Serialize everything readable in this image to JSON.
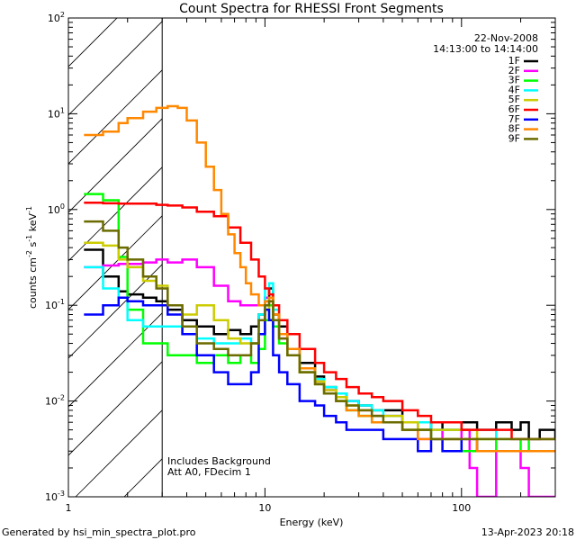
{
  "chart_data": {
    "type": "line",
    "title": "Count Spectra for RHESSI Front Segments",
    "xlabel": "Energy (keV)",
    "ylabel_parts": {
      "a": "counts cm",
      "a_exp": "-2",
      "b": " s",
      "b_exp": "-1",
      "c": " keV",
      "c_exp": "-1"
    },
    "xscale": "log",
    "yscale": "log",
    "xlim": [
      1,
      300
    ],
    "ylim": [
      0.001,
      100
    ],
    "x_ticks": [
      {
        "value": 1,
        "label": "1"
      },
      {
        "value": 10,
        "label": "10"
      },
      {
        "value": 100,
        "label": "100"
      }
    ],
    "y_ticks": [
      {
        "value": 0.001,
        "base": "10",
        "exp": "-3"
      },
      {
        "value": 0.01,
        "base": "10",
        "exp": "-2"
      },
      {
        "value": 0.1,
        "base": "10",
        "exp": "-1"
      },
      {
        "value": 1,
        "base": "10",
        "exp": "0"
      },
      {
        "value": 10,
        "base": "10",
        "exp": "1"
      },
      {
        "value": 100,
        "base": "10",
        "exp": "2"
      }
    ],
    "hatched_region": {
      "x_start": 1,
      "x_end": 3
    },
    "header_right": [
      "22-Nov-2008",
      "14:13:00 to 14:14:00"
    ],
    "annotations": [
      "Includes Background",
      "Att A0, FDecim 1"
    ],
    "series": [
      {
        "name": "1F",
        "color": "#000000",
        "x": [
          1.2,
          1.5,
          1.8,
          2.0,
          2.4,
          2.8,
          3.2,
          3.8,
          4.5,
          5.5,
          6.5,
          7.5,
          8.5,
          9.3,
          10,
          10.5,
          11,
          11.8,
          13,
          15,
          18,
          20,
          23,
          26,
          30,
          35,
          40,
          50,
          60,
          70,
          80,
          100,
          120,
          150,
          180,
          200,
          220,
          250,
          300
        ],
        "y": [
          0.38,
          0.2,
          0.14,
          0.13,
          0.12,
          0.11,
          0.09,
          0.07,
          0.06,
          0.05,
          0.055,
          0.05,
          0.06,
          0.08,
          0.12,
          0.15,
          0.08,
          0.06,
          0.035,
          0.025,
          0.018,
          0.014,
          0.012,
          0.01,
          0.009,
          0.008,
          0.008,
          0.006,
          0.005,
          0.006,
          0.005,
          0.006,
          0.005,
          0.006,
          0.005,
          0.006,
          0.004,
          0.005,
          0.004
        ]
      },
      {
        "name": "2F",
        "color": "#ff00ff",
        "x": [
          1.2,
          1.5,
          1.8,
          2.0,
          2.4,
          2.8,
          3.2,
          3.8,
          4.5,
          5.5,
          6.5,
          7.5,
          8.5,
          9.3,
          10,
          10.5,
          11,
          11.8,
          13,
          15,
          18,
          20,
          23,
          26,
          30,
          35,
          40,
          50,
          60,
          70,
          80,
          100,
          110,
          120,
          150,
          180,
          200,
          220,
          250,
          300
        ],
        "y": [
          0.25,
          0.26,
          0.27,
          0.27,
          0.28,
          0.3,
          0.28,
          0.3,
          0.25,
          0.16,
          0.11,
          0.1,
          0.1,
          0.1,
          0.12,
          0.1,
          0.06,
          0.045,
          0.03,
          0.02,
          0.016,
          0.013,
          0.011,
          0.01,
          0.008,
          0.007,
          0.007,
          0.006,
          0.004,
          0.005,
          0.004,
          0.005,
          0.002,
          0.001,
          0.003,
          0.003,
          0.002,
          0.001,
          0.001,
          0.001
        ]
      },
      {
        "name": "3F",
        "color": "#00ff00",
        "x": [
          1.2,
          1.5,
          1.8,
          2.0,
          2.4,
          2.8,
          3.2,
          3.8,
          4.5,
          5.5,
          6.5,
          7.5,
          8.5,
          9.3,
          10,
          10.5,
          11,
          11.8,
          13,
          15,
          18,
          20,
          23,
          26,
          30,
          35,
          40,
          50,
          60,
          70,
          80,
          100,
          120,
          150,
          180,
          200,
          220,
          250,
          300
        ],
        "y": [
          1.45,
          1.25,
          0.32,
          0.09,
          0.04,
          0.04,
          0.03,
          0.03,
          0.025,
          0.03,
          0.025,
          0.03,
          0.025,
          0.035,
          0.07,
          0.1,
          0.06,
          0.04,
          0.03,
          0.02,
          0.015,
          0.012,
          0.01,
          0.008,
          0.007,
          0.006,
          0.006,
          0.005,
          0.005,
          0.004,
          0.004,
          0.003,
          0.004,
          0.003,
          0.003,
          0.004,
          0.003,
          0.003,
          0.003
        ]
      },
      {
        "name": "4F",
        "color": "#00ffff",
        "x": [
          1.2,
          1.5,
          1.8,
          2.0,
          2.4,
          2.8,
          3.2,
          3.8,
          4.5,
          5.5,
          6.5,
          7.5,
          8.5,
          9.3,
          10,
          10.5,
          11,
          11.8,
          13,
          15,
          18,
          20,
          23,
          26,
          30,
          35,
          40,
          50,
          60,
          70,
          80,
          100,
          120,
          150,
          180,
          200,
          220,
          250,
          300
        ],
        "y": [
          0.25,
          0.15,
          0.12,
          0.07,
          0.06,
          0.06,
          0.06,
          0.05,
          0.045,
          0.04,
          0.04,
          0.045,
          0.04,
          0.08,
          0.15,
          0.17,
          0.09,
          0.05,
          0.035,
          0.022,
          0.017,
          0.014,
          0.012,
          0.01,
          0.009,
          0.008,
          0.007,
          0.006,
          0.006,
          0.005,
          0.005,
          0.005,
          0.005,
          0.004,
          0.004,
          0.004,
          0.004,
          0.004,
          0.004
        ]
      },
      {
        "name": "5F",
        "color": "#cccc00",
        "x": [
          1.2,
          1.5,
          1.8,
          2.0,
          2.4,
          2.8,
          3.2,
          3.8,
          4.5,
          5.5,
          6.5,
          7.5,
          8.5,
          9.3,
          10,
          10.5,
          11,
          11.8,
          13,
          15,
          18,
          20,
          23,
          26,
          30,
          35,
          40,
          50,
          60,
          70,
          80,
          100,
          120,
          150,
          180,
          200,
          220,
          250,
          300
        ],
        "y": [
          0.45,
          0.42,
          0.3,
          0.25,
          0.18,
          0.16,
          0.1,
          0.08,
          0.1,
          0.07,
          0.045,
          0.04,
          0.04,
          0.05,
          0.09,
          0.12,
          0.07,
          0.05,
          0.03,
          0.02,
          0.016,
          0.013,
          0.011,
          0.009,
          0.008,
          0.007,
          0.007,
          0.006,
          0.005,
          0.005,
          0.005,
          0.005,
          0.004,
          0.004,
          0.004,
          0.004,
          0.004,
          0.004,
          0.004
        ]
      },
      {
        "name": "6F",
        "color": "#ff0000",
        "x": [
          1.2,
          1.5,
          1.8,
          2.0,
          2.4,
          2.8,
          3.2,
          3.8,
          4.5,
          5.5,
          6.5,
          7.5,
          8.5,
          9.3,
          10,
          10.5,
          11,
          11.8,
          13,
          15,
          18,
          20,
          23,
          26,
          30,
          35,
          40,
          50,
          60,
          70,
          80,
          100,
          120,
          150,
          180,
          200,
          220,
          250,
          300
        ],
        "y": [
          1.18,
          1.16,
          1.15,
          1.15,
          1.15,
          1.12,
          1.1,
          1.05,
          0.95,
          0.85,
          0.65,
          0.45,
          0.3,
          0.2,
          0.15,
          0.13,
          0.1,
          0.07,
          0.05,
          0.035,
          0.025,
          0.02,
          0.017,
          0.014,
          0.012,
          0.011,
          0.01,
          0.008,
          0.007,
          0.006,
          0.006,
          0.005,
          0.005,
          0.005,
          0.004,
          0.004,
          0.004,
          0.004,
          0.004
        ]
      },
      {
        "name": "7F",
        "color": "#0000ff",
        "x": [
          1.2,
          1.5,
          1.8,
          2.0,
          2.4,
          2.8,
          3.2,
          3.8,
          4.5,
          5.5,
          6.5,
          7.5,
          8.5,
          9.3,
          10,
          10.5,
          11,
          11.8,
          13,
          15,
          18,
          20,
          23,
          26,
          30,
          35,
          40,
          50,
          60,
          70,
          80,
          100,
          120,
          150,
          180,
          200,
          220,
          250,
          300
        ],
        "y": [
          0.08,
          0.1,
          0.12,
          0.11,
          0.1,
          0.1,
          0.08,
          0.05,
          0.03,
          0.02,
          0.015,
          0.015,
          0.02,
          0.05,
          0.09,
          0.07,
          0.03,
          0.02,
          0.015,
          0.01,
          0.009,
          0.007,
          0.006,
          0.005,
          0.005,
          0.005,
          0.004,
          0.004,
          0.003,
          0.004,
          0.003,
          0.004,
          0.003,
          0.003,
          0.003,
          0.003,
          0.003,
          0.003,
          0.003
        ]
      },
      {
        "name": "8F",
        "color": "#ff8800",
        "x": [
          1.2,
          1.5,
          1.8,
          2.0,
          2.4,
          2.8,
          3.2,
          3.6,
          4.0,
          4.5,
          5.0,
          5.5,
          6.0,
          6.5,
          7.0,
          7.5,
          8.0,
          8.5,
          9.3,
          10,
          10.5,
          11,
          11.8,
          13,
          15,
          18,
          20,
          23,
          26,
          30,
          35,
          40,
          50,
          60,
          70,
          80,
          100,
          120,
          150,
          180,
          200,
          220,
          250,
          300
        ],
        "y": [
          6,
          6.5,
          8,
          9,
          10.5,
          11.5,
          12,
          11.5,
          8.5,
          5,
          2.8,
          1.6,
          0.9,
          0.55,
          0.35,
          0.25,
          0.17,
          0.13,
          0.1,
          0.11,
          0.12,
          0.08,
          0.05,
          0.035,
          0.022,
          0.015,
          0.012,
          0.01,
          0.008,
          0.007,
          0.006,
          0.006,
          0.005,
          0.004,
          0.004,
          0.004,
          0.004,
          0.003,
          0.003,
          0.003,
          0.003,
          0.003,
          0.003,
          0.003
        ]
      },
      {
        "name": "9F",
        "color": "#6b6b00",
        "x": [
          1.2,
          1.5,
          1.8,
          2.0,
          2.4,
          2.8,
          3.2,
          3.8,
          4.5,
          5.5,
          6.5,
          7.5,
          8.5,
          9.3,
          10,
          10.5,
          11,
          11.8,
          13,
          15,
          18,
          20,
          23,
          26,
          30,
          35,
          40,
          50,
          60,
          70,
          80,
          100,
          120,
          150,
          180,
          200,
          220,
          250,
          300
        ],
        "y": [
          0.75,
          0.6,
          0.4,
          0.3,
          0.2,
          0.15,
          0.1,
          0.06,
          0.04,
          0.035,
          0.03,
          0.03,
          0.04,
          0.07,
          0.1,
          0.11,
          0.07,
          0.045,
          0.03,
          0.02,
          0.015,
          0.012,
          0.01,
          0.009,
          0.008,
          0.007,
          0.006,
          0.005,
          0.005,
          0.004,
          0.004,
          0.004,
          0.004,
          0.004,
          0.004,
          0.004,
          0.004,
          0.004,
          0.004
        ]
      }
    ]
  },
  "footer": {
    "generated_by": "Generated by hsi_min_spectra_plot.pro",
    "date": "13-Apr-2023 20:18"
  }
}
